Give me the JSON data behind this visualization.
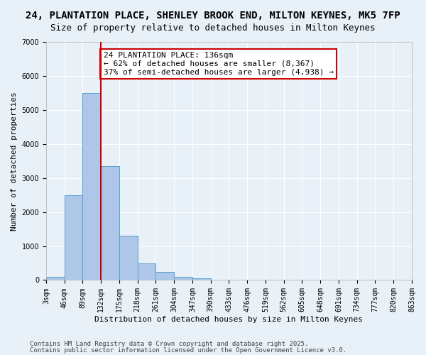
{
  "title_line1": "24, PLANTATION PLACE, SHENLEY BROOK END, MILTON KEYNES, MK5 7FP",
  "title_line2": "Size of property relative to detached houses in Milton Keynes",
  "xlabel": "Distribution of detached houses by size in Milton Keynes",
  "ylabel": "Number of detached properties",
  "bins": [
    "3sqm",
    "46sqm",
    "89sqm",
    "132sqm",
    "175sqm",
    "218sqm",
    "261sqm",
    "304sqm",
    "347sqm",
    "390sqm",
    "433sqm",
    "476sqm",
    "519sqm",
    "562sqm",
    "605sqm",
    "648sqm",
    "691sqm",
    "734sqm",
    "777sqm",
    "820sqm",
    "863sqm"
  ],
  "bin_edges": [
    3,
    46,
    89,
    132,
    175,
    218,
    261,
    304,
    347,
    390,
    433,
    476,
    519,
    562,
    605,
    648,
    691,
    734,
    777,
    820,
    863
  ],
  "values": [
    100,
    2500,
    5500,
    3350,
    1300,
    480,
    230,
    100,
    60,
    0,
    0,
    0,
    0,
    0,
    0,
    0,
    0,
    0,
    0,
    0
  ],
  "bar_color": "#aec6e8",
  "bar_edge_color": "#5a9fd4",
  "vline_x": 132,
  "vline_color": "#cc0000",
  "annotation_text": "24 PLANTATION PLACE: 136sqm\n← 62% of detached houses are smaller (8,367)\n37% of semi-detached houses are larger (4,938) →",
  "annotation_box_color": "#ffffff",
  "annotation_box_edge_color": "#cc0000",
  "ylim": [
    0,
    7000
  ],
  "yticks": [
    0,
    1000,
    2000,
    3000,
    4000,
    5000,
    6000,
    7000
  ],
  "background_color": "#e8f0f8",
  "footer_line1": "Contains HM Land Registry data © Crown copyright and database right 2025.",
  "footer_line2": "Contains public sector information licensed under the Open Government Licence v3.0.",
  "title_fontsize": 10,
  "subtitle_fontsize": 9,
  "axis_label_fontsize": 8,
  "tick_fontsize": 7,
  "annotation_fontsize": 8,
  "footer_fontsize": 6.5
}
